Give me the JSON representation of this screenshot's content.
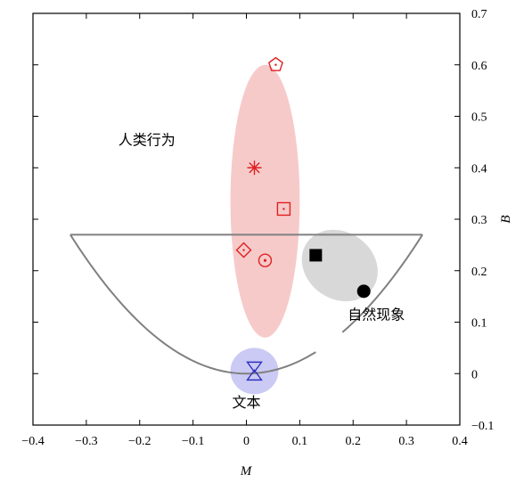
{
  "chart_data": {
    "type": "scatter",
    "title": "",
    "xlabel": "M",
    "ylabel": "B",
    "xlim": [
      -0.4,
      0.4
    ],
    "ylim": [
      -0.1,
      0.7
    ],
    "x_ticks": [
      "−0.4",
      "−0.3",
      "−0.2",
      "−0.1",
      "0",
      "0.1",
      "0.2",
      "0.3",
      "0.4"
    ],
    "x_tick_values": [
      -0.4,
      -0.3,
      -0.2,
      -0.1,
      0,
      0.1,
      0.2,
      0.3,
      0.4
    ],
    "y_ticks": [
      "−0.1",
      "0",
      "0.1",
      "0.2",
      "0.3",
      "0.4",
      "0.5",
      "0.6",
      "0.7"
    ],
    "y_tick_values": [
      -0.1,
      0,
      0.1,
      0.2,
      0.3,
      0.4,
      0.5,
      0.6,
      0.7
    ],
    "grid": false,
    "regions": [
      {
        "label": "人类行为",
        "color": "#f4b4b4",
        "center": [
          0.035,
          0.335
        ],
        "radius": [
          0.065,
          0.265
        ],
        "label_at": [
          -0.24,
          0.445
        ]
      },
      {
        "label": "自然现象",
        "color": "#c8c8c8",
        "center": [
          0.175,
          0.21
        ],
        "radius": [
          0.075,
          0.065
        ],
        "rotation": 35,
        "label_at": [
          0.19,
          0.105
        ]
      },
      {
        "label": "文本",
        "color": "#b4b4f0",
        "center": [
          0.015,
          0.005
        ],
        "radius": [
          0.045,
          0.045
        ],
        "label_at": [
          0.0,
          -0.065
        ]
      }
    ],
    "boundary": {
      "color": "#808080",
      "top_y": 0.27,
      "x_range": [
        -0.33,
        0.33
      ],
      "vertex": [
        0,
        0
      ],
      "gap_x": [
        0.13,
        0.18
      ]
    },
    "points": [
      {
        "marker": "pentagon",
        "x": 0.055,
        "y": 0.6,
        "color": "#e02020"
      },
      {
        "marker": "asterisk",
        "x": 0.015,
        "y": 0.4,
        "color": "#e02020"
      },
      {
        "marker": "square-open",
        "x": 0.07,
        "y": 0.32,
        "color": "#e02020"
      },
      {
        "marker": "diamond-open",
        "x": -0.005,
        "y": 0.24,
        "color": "#e02020"
      },
      {
        "marker": "circle-dot",
        "x": 0.035,
        "y": 0.22,
        "color": "#e02020"
      },
      {
        "marker": "square-filled",
        "x": 0.13,
        "y": 0.23,
        "color": "#000000"
      },
      {
        "marker": "circle-filled",
        "x": 0.22,
        "y": 0.16,
        "color": "#000000"
      },
      {
        "marker": "hourglass",
        "x": 0.015,
        "y": 0.005,
        "color": "#3030c0"
      }
    ]
  }
}
